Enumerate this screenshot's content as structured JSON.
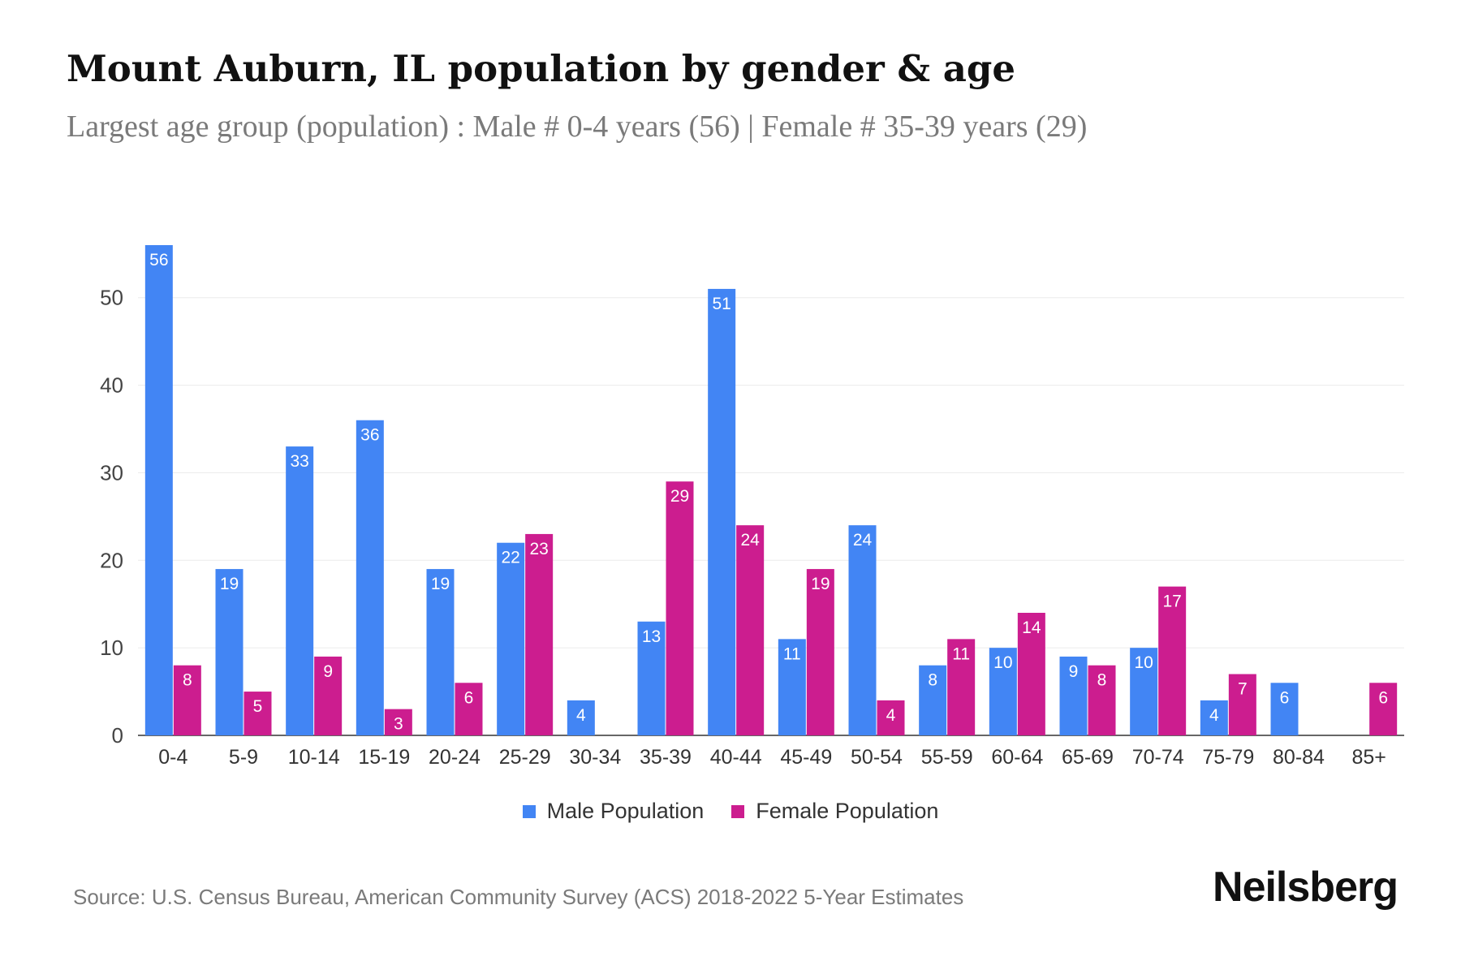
{
  "title": "Mount Auburn, IL population by gender & age",
  "subtitle": "Largest age group (population) : Male # 0-4 years (56) | Female # 35-39 years (29)",
  "source": "Source: U.S. Census Bureau, American Community Survey (ACS) 2018-2022 5-Year Estimates",
  "brand": "Neilsberg",
  "colors": {
    "male": "#4285f4",
    "female": "#cc1d8f"
  },
  "chart_data": {
    "type": "bar",
    "categories": [
      "0-4",
      "5-9",
      "10-14",
      "15-19",
      "20-24",
      "25-29",
      "30-34",
      "35-39",
      "40-44",
      "45-49",
      "50-54",
      "55-59",
      "60-64",
      "65-69",
      "70-74",
      "75-79",
      "80-84",
      "85+"
    ],
    "series": [
      {
        "name": "Male Population",
        "values": [
          56,
          19,
          33,
          36,
          19,
          22,
          4,
          13,
          51,
          11,
          24,
          8,
          10,
          9,
          10,
          4,
          6,
          0
        ]
      },
      {
        "name": "Female Population",
        "values": [
          8,
          5,
          9,
          3,
          6,
          23,
          0,
          29,
          24,
          19,
          4,
          11,
          14,
          8,
          17,
          7,
          0,
          6
        ]
      }
    ],
    "yticks": [
      0,
      10,
      20,
      30,
      40,
      50
    ],
    "ylim": [
      0,
      56
    ],
    "grid": true,
    "legend": "bottom-center"
  }
}
